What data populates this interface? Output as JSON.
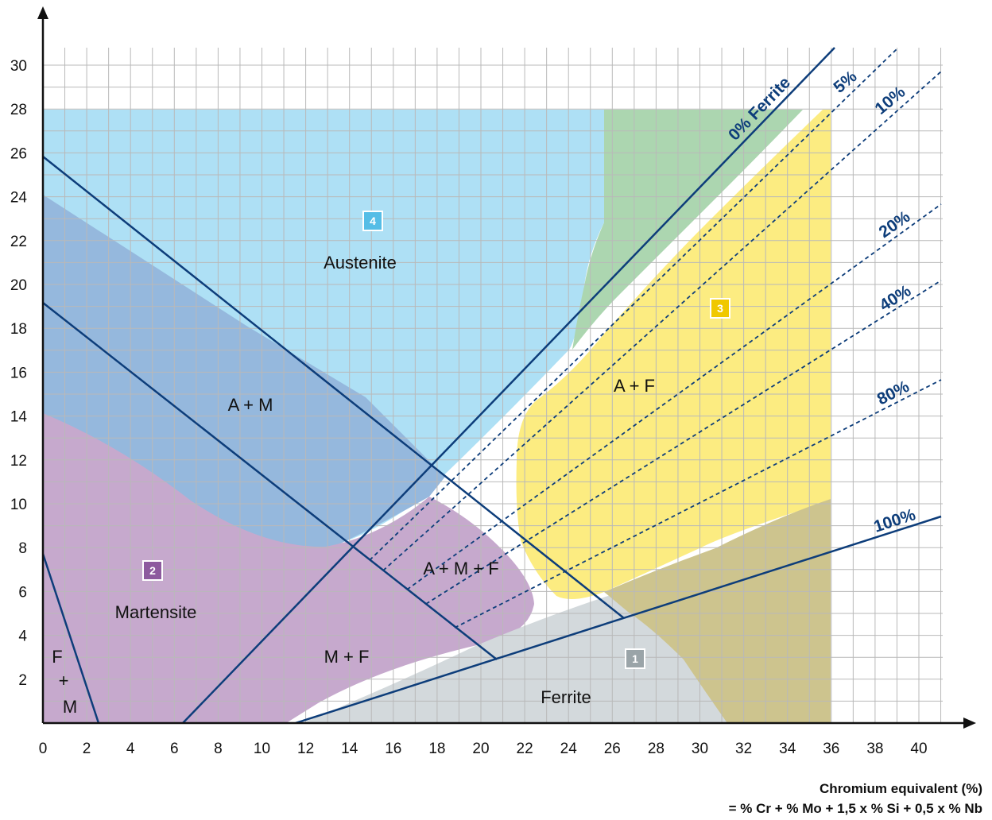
{
  "axes": {
    "x_ticks": [
      "0",
      "2",
      "4",
      "6",
      "8",
      "10",
      "12",
      "14",
      "16",
      "18",
      "20",
      "22",
      "24",
      "26",
      "28",
      "30",
      "32",
      "34",
      "36",
      "38",
      "40"
    ],
    "y_ticks": [
      "2",
      "4",
      "6",
      "8",
      "10",
      "12",
      "14",
      "16",
      "18",
      "20",
      "22",
      "24",
      "26",
      "28",
      "30"
    ],
    "x_label_line1": "Chromium equivalent (%)",
    "x_label_line2": "= % Cr + % Mo + 1,5 x % Si + 0,5 x % Nb"
  },
  "regions": {
    "austenite": "Austenite",
    "martensite": "Martensite",
    "ferrite": "Ferrite",
    "a_m": "A + M",
    "a_f": "A + F",
    "m_f": "M + F",
    "a_m_f": "A + M + F",
    "f_m": [
      "F",
      "+",
      "M"
    ]
  },
  "badges": {
    "ferrite": "1",
    "martensite": "2",
    "a_f": "3",
    "austenite": "4"
  },
  "ferrite_lines": [
    "0% Ferrite",
    "5%",
    "10%",
    "20%",
    "40%",
    "80%",
    "100%"
  ],
  "colors": {
    "austenite": "#aee0f5",
    "martensite": "#c6a9cd",
    "a_m": "#95b8dd",
    "ferrite": "#d3d9dc",
    "a_f": "#fcec81",
    "green": "#acd6b0",
    "olive": "#cdc48e",
    "line": "#0d3d7a"
  }
}
